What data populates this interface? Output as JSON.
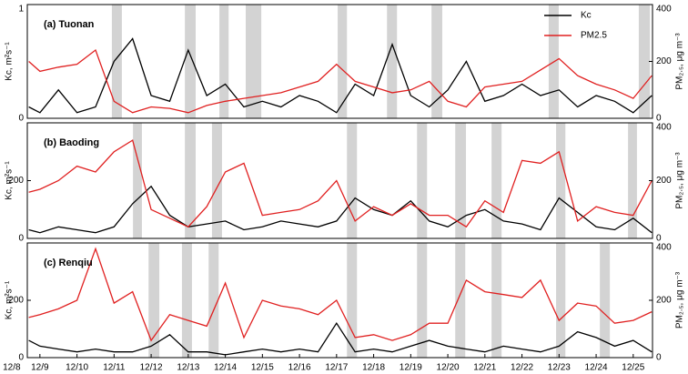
{
  "chart_data": [
    {
      "type": "line",
      "title": "(a) Tuonan",
      "y_label": "Kc, m²s⁻¹",
      "y2_label": "PM₂.₅, μg m⁻³",
      "legend": "upper right",
      "xlim": [
        0.66,
        17.52
      ],
      "x": [
        0.7,
        1,
        1.5,
        2,
        2.5,
        3,
        3.5,
        4,
        4.5,
        5,
        5.5,
        6,
        6.5,
        7,
        7.5,
        8,
        8.5,
        9,
        9.5,
        10,
        10.5,
        11,
        11.5,
        12,
        12.5,
        13,
        13.5,
        14,
        14.5,
        15,
        15.5,
        16,
        16.5,
        17,
        17.5
      ],
      "ylim": [
        0,
        1
      ],
      "yticks": [
        0,
        1
      ],
      "y2lim": [
        0,
        400
      ],
      "y2ticks": [
        0,
        200,
        400
      ],
      "shade_color": "#d3d3d3",
      "shaded": [
        [
          2.94,
          3.21
        ],
        [
          4.91,
          5.2
        ],
        [
          5.84,
          6.09
        ],
        [
          6.55,
          6.97
        ],
        [
          9.03,
          9.28
        ],
        [
          10.36,
          10.63
        ],
        [
          11.56,
          11.85
        ],
        [
          14.72,
          14.99
        ],
        [
          17.15,
          17.45
        ]
      ],
      "series": [
        {
          "name": "Kc",
          "color": "#000000",
          "axis": "y",
          "values": [
            0.1,
            0.05,
            0.25,
            0.05,
            0.1,
            0.5,
            0.7,
            0.2,
            0.15,
            0.6,
            0.2,
            0.3,
            0.1,
            0.15,
            0.1,
            0.2,
            0.15,
            0.05,
            0.3,
            0.2,
            0.65,
            0.2,
            0.1,
            0.25,
            0.5,
            0.15,
            0.2,
            0.3,
            0.2,
            0.25,
            0.1,
            0.2,
            0.15,
            0.05,
            0.2
          ]
        },
        {
          "name": "PM2.5",
          "color": "#e02020",
          "axis": "y2",
          "values": [
            200,
            165,
            180,
            190,
            240,
            60,
            20,
            40,
            35,
            20,
            45,
            60,
            70,
            80,
            90,
            110,
            130,
            190,
            130,
            110,
            90,
            100,
            130,
            60,
            40,
            110,
            120,
            130,
            170,
            210,
            150,
            120,
            100,
            70,
            150
          ]
        }
      ]
    },
    {
      "type": "line",
      "title": "(b) Baoding",
      "y_label": "Kc, m²s⁻¹",
      "y2_label": "PM₂.₅, μg m⁻³",
      "xlim": [
        0.66,
        17.52
      ],
      "x": [
        0.7,
        1,
        1.5,
        2,
        2.5,
        3,
        3.5,
        4,
        4.5,
        5,
        5.5,
        6,
        6.5,
        7,
        7.5,
        8,
        8.5,
        9,
        9.5,
        10,
        10.5,
        11,
        11.5,
        12,
        12.5,
        13,
        13.5,
        14,
        14.5,
        15,
        15.5,
        16,
        16.5,
        17,
        17.5
      ],
      "ylim": [
        0,
        400
      ],
      "yticks": [
        0,
        200
      ],
      "y2lim": [
        0,
        400
      ],
      "y2ticks": [
        0,
        200,
        400
      ],
      "shade_color": "#d3d3d3",
      "shaded": [
        [
          3.51,
          3.75
        ],
        [
          4.91,
          5.2
        ],
        [
          5.64,
          5.91
        ],
        [
          9.28,
          9.55
        ],
        [
          11.17,
          11.44
        ],
        [
          12.2,
          12.49
        ],
        [
          13.18,
          13.45
        ],
        [
          14.92,
          15.17
        ],
        [
          16.86,
          17.1
        ]
      ],
      "series": [
        {
          "color": "#000000",
          "axis": "y",
          "values": [
            30,
            20,
            40,
            30,
            20,
            40,
            120,
            180,
            80,
            40,
            50,
            60,
            30,
            40,
            60,
            50,
            40,
            60,
            140,
            100,
            80,
            130,
            60,
            40,
            80,
            100,
            60,
            50,
            30,
            140,
            90,
            40,
            30,
            70,
            20
          ]
        },
        {
          "color": "#e02020",
          "axis": "y2",
          "values": [
            160,
            170,
            200,
            250,
            230,
            300,
            340,
            100,
            70,
            40,
            110,
            230,
            260,
            80,
            90,
            100,
            130,
            200,
            60,
            110,
            80,
            120,
            80,
            80,
            40,
            130,
            90,
            270,
            260,
            300,
            60,
            110,
            90,
            80,
            200
          ]
        }
      ]
    },
    {
      "type": "line",
      "title": "(c) Renqiu",
      "y_label": "Kc, m²s⁻¹",
      "y2_label": "PM₂.₅, μg m⁻³",
      "xlim": [
        0.66,
        17.52
      ],
      "x": [
        0.7,
        1,
        1.5,
        2,
        2.5,
        3,
        3.5,
        4,
        4.5,
        5,
        5.5,
        6,
        6.5,
        7,
        7.5,
        8,
        8.5,
        9,
        9.5,
        10,
        10.5,
        11,
        11.5,
        12,
        12.5,
        13,
        13.5,
        14,
        14.5,
        15,
        15.5,
        16,
        16.5,
        17,
        17.5
      ],
      "xticks": [
        {
          "value": 0,
          "label": "12/8"
        },
        {
          "value": 1,
          "label": "12/9"
        },
        {
          "value": 2,
          "label": "12/10"
        },
        {
          "value": 3,
          "label": "12/11"
        },
        {
          "value": 4,
          "label": "12/12"
        },
        {
          "value": 5,
          "label": "12/13"
        },
        {
          "value": 6,
          "label": "12/14"
        },
        {
          "value": 7,
          "label": "12/15"
        },
        {
          "value": 8,
          "label": "12/16"
        },
        {
          "value": 9,
          "label": "12/17"
        },
        {
          "value": 10,
          "label": "12/18"
        },
        {
          "value": 11,
          "label": "12/19"
        },
        {
          "value": 12,
          "label": "12/20"
        },
        {
          "value": 13,
          "label": "12/21"
        },
        {
          "value": 14,
          "label": "12/22"
        },
        {
          "value": 15,
          "label": "12/23"
        },
        {
          "value": 16,
          "label": "12/24"
        },
        {
          "value": 17,
          "label": "12/25"
        }
      ],
      "ylim": [
        0,
        400
      ],
      "yticks": [
        0,
        200
      ],
      "y2lim": [
        0,
        400
      ],
      "y2ticks": [
        0,
        200,
        400
      ],
      "shade_color": "#d3d3d3",
      "shaded": [
        [
          3.93,
          4.22
        ],
        [
          4.83,
          5.1
        ],
        [
          5.55,
          5.82
        ],
        [
          9.28,
          9.55
        ],
        [
          11.17,
          11.44
        ],
        [
          12.2,
          12.47
        ],
        [
          13.18,
          13.45
        ],
        [
          14.92,
          15.17
        ],
        [
          16.1,
          16.37
        ]
      ],
      "series": [
        {
          "color": "#000000",
          "axis": "y",
          "values": [
            60,
            40,
            30,
            20,
            30,
            20,
            20,
            40,
            80,
            20,
            20,
            10,
            20,
            30,
            20,
            30,
            20,
            120,
            20,
            30,
            20,
            40,
            60,
            40,
            30,
            20,
            40,
            30,
            20,
            40,
            90,
            70,
            40,
            60,
            20
          ]
        },
        {
          "color": "#e02020",
          "axis": "y2",
          "values": [
            140,
            150,
            170,
            200,
            380,
            190,
            230,
            60,
            150,
            130,
            110,
            260,
            70,
            200,
            180,
            170,
            150,
            200,
            70,
            80,
            60,
            80,
            120,
            120,
            270,
            230,
            220,
            210,
            270,
            130,
            190,
            180,
            120,
            130,
            160
          ]
        }
      ]
    }
  ]
}
